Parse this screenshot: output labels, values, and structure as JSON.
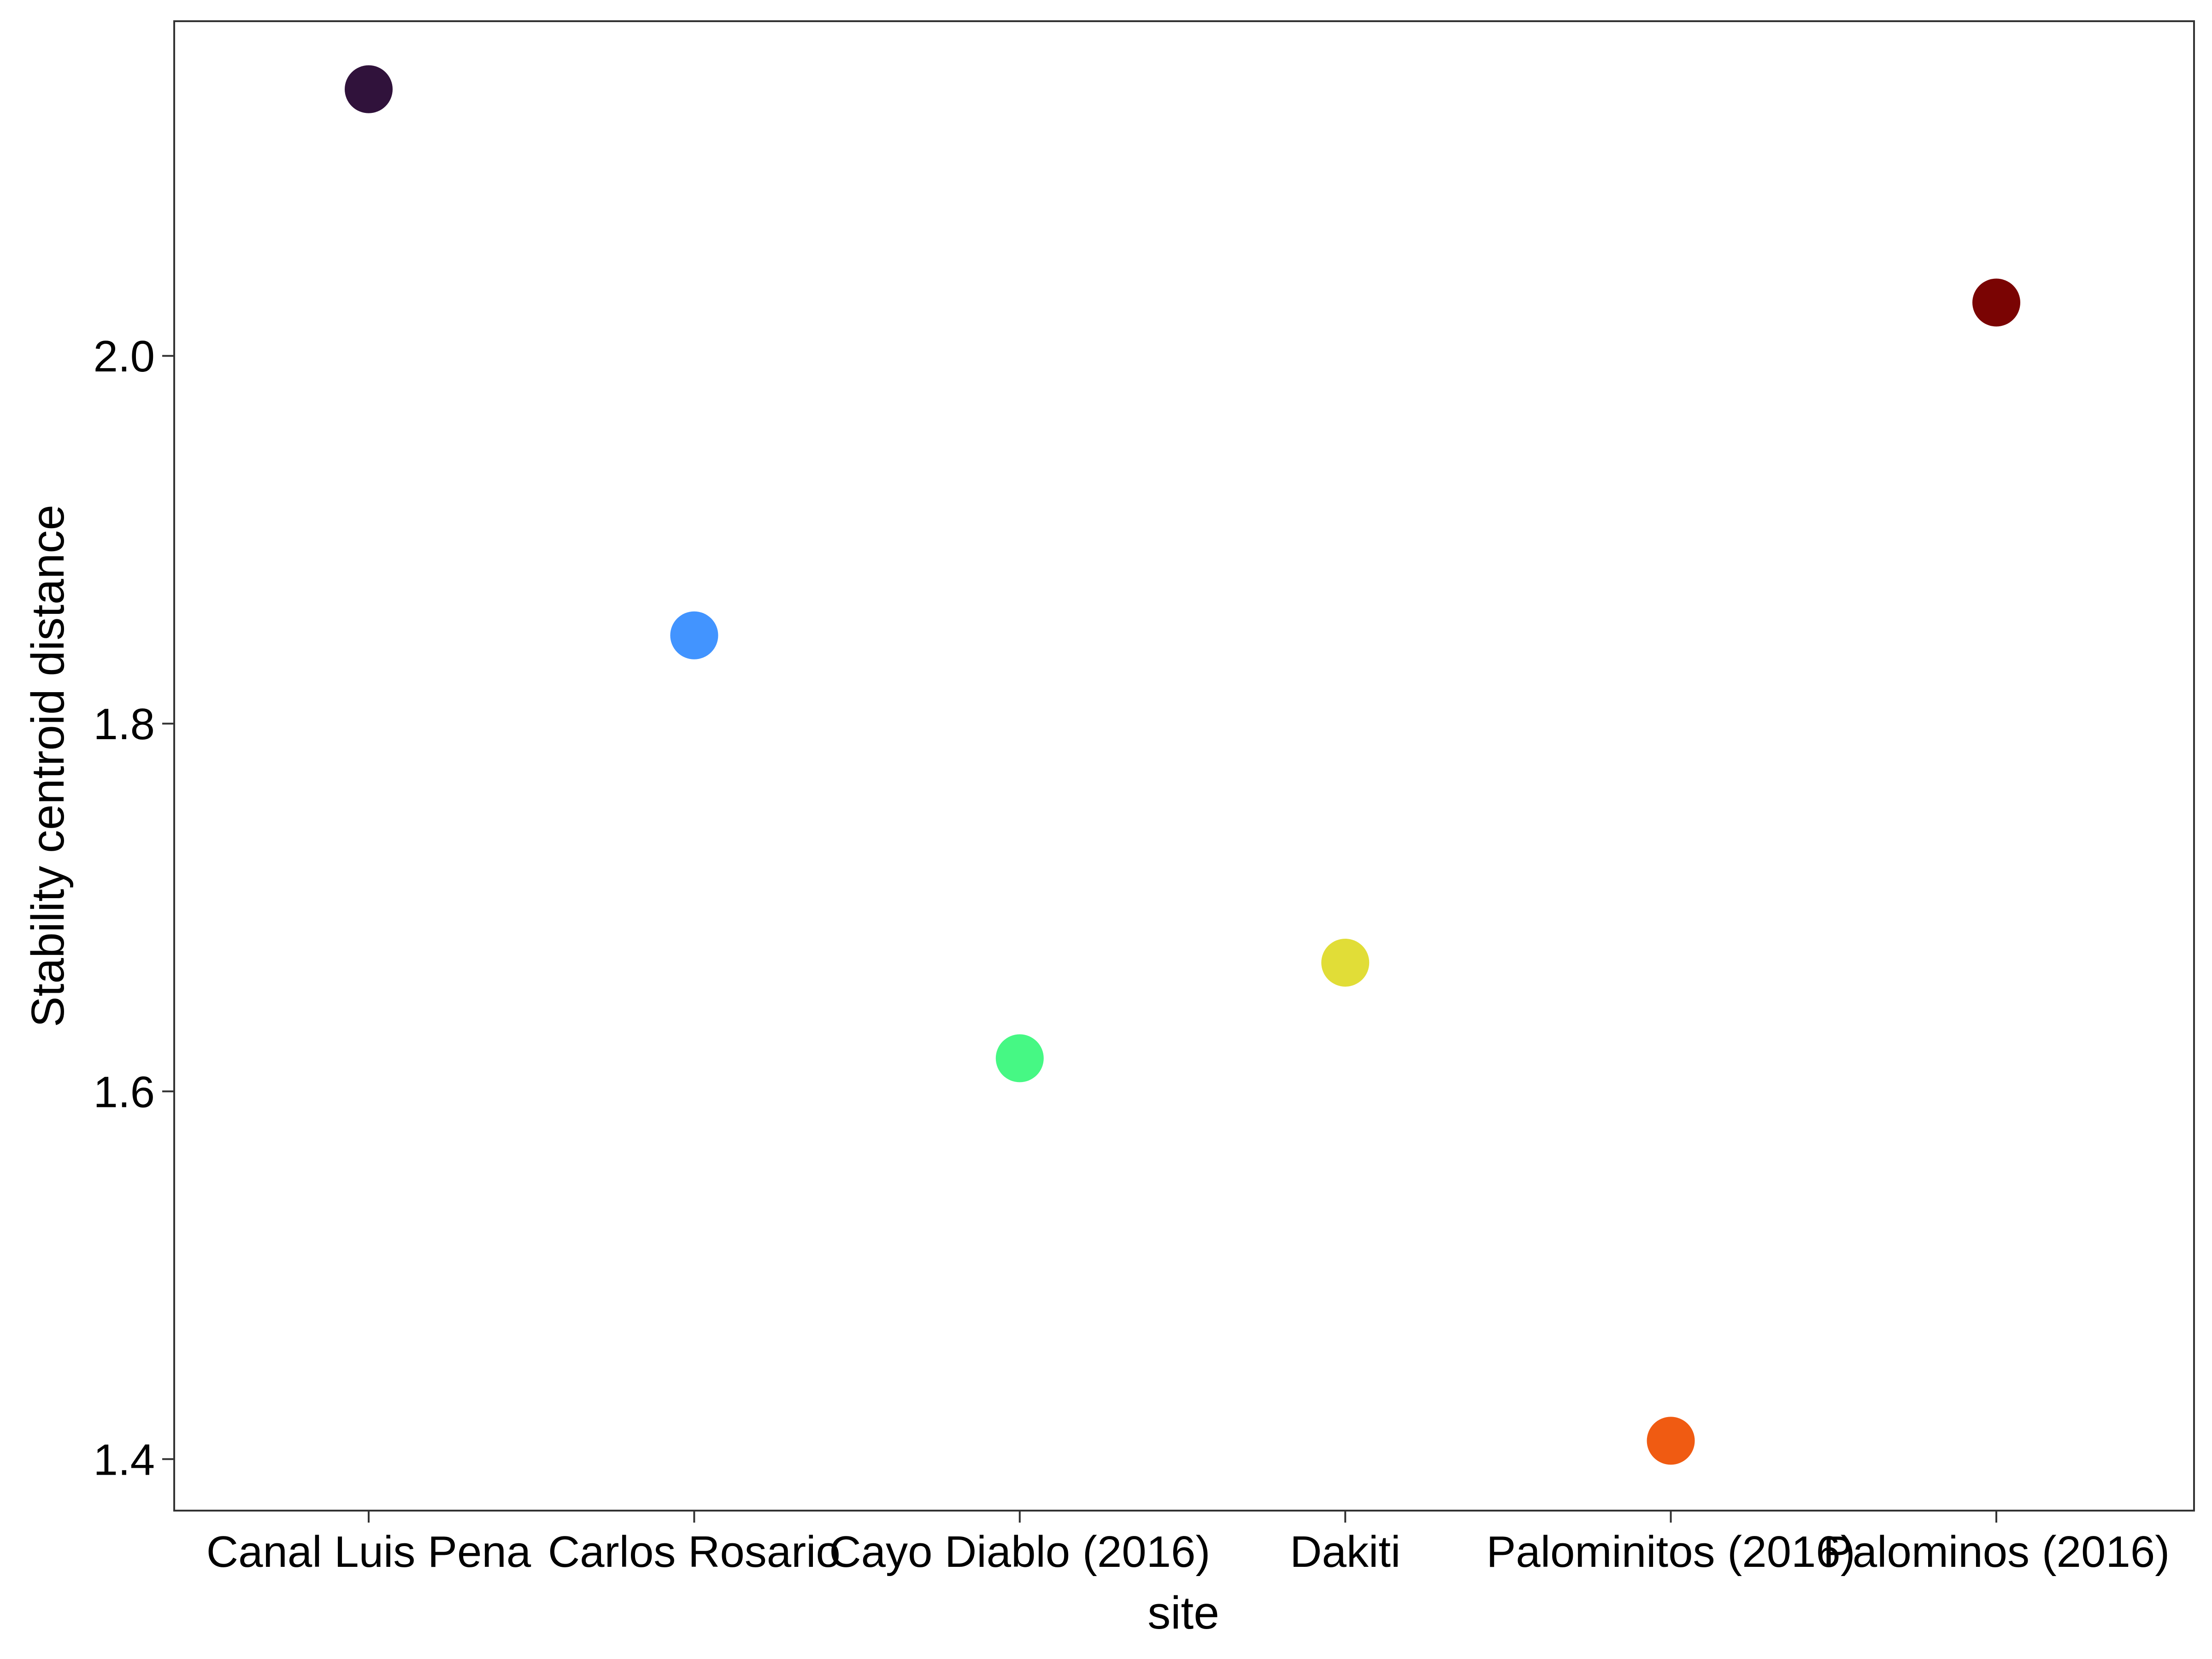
{
  "chart_data": {
    "type": "scatter",
    "xlabel": "site",
    "ylabel": "Stability centroid distance",
    "categories": [
      "Canal Luis Pena",
      "Carlos Rosario",
      "Cayo Diablo (2016)",
      "Dakiti",
      "Palominitos (2016)",
      "Palominos (2016)"
    ],
    "values": [
      2.145,
      1.848,
      1.618,
      1.67,
      1.41,
      2.029
    ],
    "colors": [
      "#30123b",
      "#4294ff",
      "#46f884",
      "#e1dd37",
      "#f05b12",
      "#7a0403"
    ],
    "y_ticks": [
      1.4,
      1.6,
      1.8,
      2.0
    ],
    "y_tick_labels": [
      "1.4",
      "1.6",
      "1.8",
      "2.0"
    ],
    "ylim": [
      1.372,
      2.182
    ],
    "grid": false,
    "legend": "none"
  }
}
